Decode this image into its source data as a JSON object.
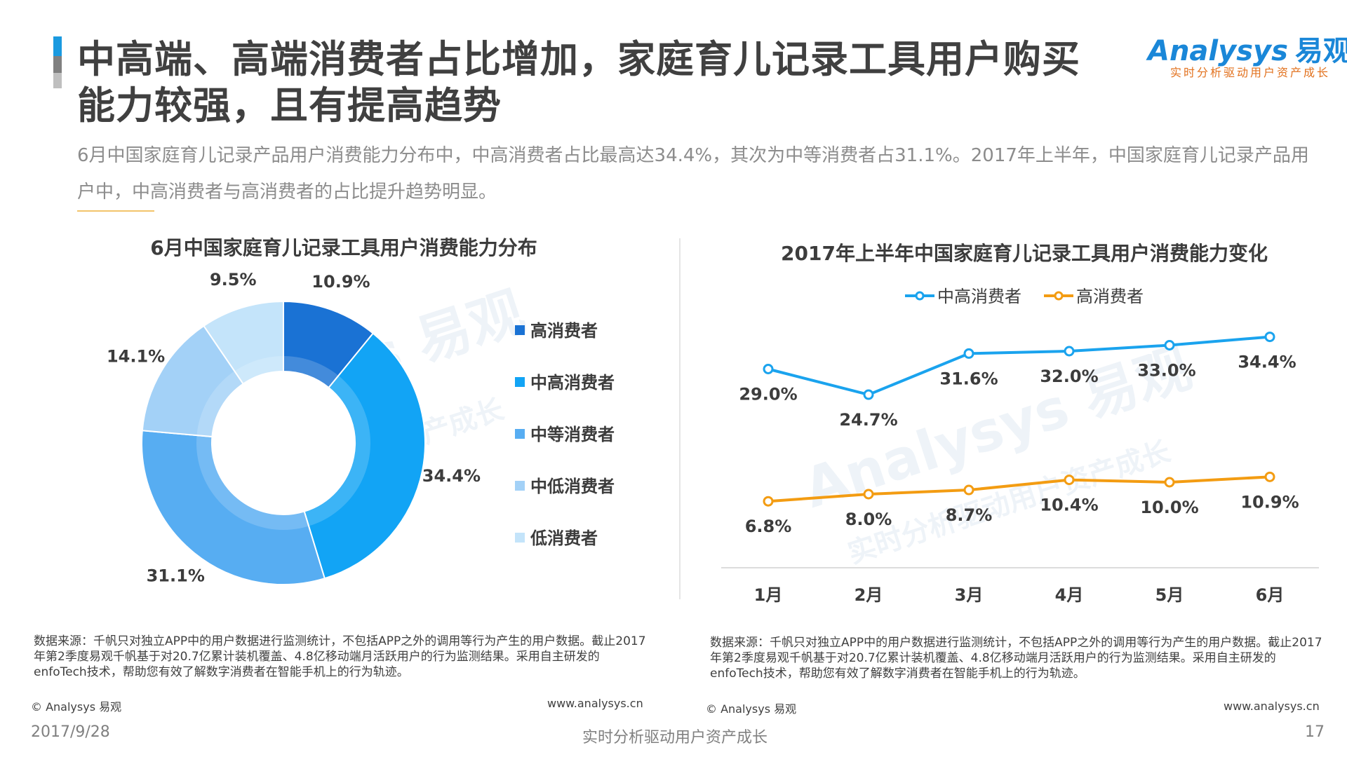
{
  "header": {
    "title": "中高端、高端消费者占比增加，家庭育儿记录工具用户购买能力较强，且有提高趋势",
    "logo_brand": "Analysys",
    "logo_cn": "易观",
    "logo_tagline": "实时分析驱动用户资产成长",
    "summary": "6月中国家庭育儿记录产品用户消费能力分布中，中高消费者占比最高达34.4%，其次为中等消费者占31.1%。2017年上半年，中国家庭育儿记录产品用户中，中高消费者与高消费者的占比提升趋势明显。"
  },
  "colors": {
    "accent_bar": [
      "#1a9ae0",
      "#808080",
      "#bfbfbf"
    ],
    "line_upper": "#1aa3ee",
    "line_lower": "#f39c12"
  },
  "chart_data": [
    {
      "type": "pie",
      "title": "6月中国家庭育儿记录工具用户消费能力分布",
      "categories": [
        "高消费者",
        "中高消费者",
        "中等消费者",
        "中低消费者",
        "低消费者"
      ],
      "values": [
        10.9,
        34.4,
        31.1,
        14.1,
        9.5
      ],
      "labels": [
        "10.9%",
        "34.4%",
        "31.1%",
        "14.1%",
        "9.5%"
      ],
      "colors": [
        "#1a72d4",
        "#12a4f5",
        "#57adf2",
        "#a3d1f7",
        "#c4e4fa"
      ],
      "donut": true,
      "legend_position": "right"
    },
    {
      "type": "line",
      "title": "2017年上半年中国家庭育儿记录工具用户消费能力变化",
      "categories": [
        "1月",
        "2月",
        "3月",
        "4月",
        "5月",
        "6月"
      ],
      "series": [
        {
          "name": "中高消费者",
          "values": [
            29.0,
            24.7,
            31.6,
            32.0,
            33.0,
            34.4
          ],
          "labels": [
            "29.0%",
            "24.7%",
            "31.6%",
            "32.0%",
            "33.0%",
            "34.4%"
          ],
          "color": "#1aa3ee"
        },
        {
          "name": "高消费者",
          "values": [
            6.8,
            8.0,
            8.7,
            10.4,
            10.0,
            10.9
          ],
          "labels": [
            "6.8%",
            "8.0%",
            "8.7%",
            "10.4%",
            "10.0%",
            "10.9%"
          ],
          "color": "#f39c12"
        }
      ],
      "legend_position": "top",
      "grid": false
    }
  ],
  "source_left": "数据来源：千帆只对独立APP中的用户数据进行监测统计，不包括APP之外的调用等行为产生的用户数据。截止2017年第2季度易观千帆基于对20.7亿累计装机覆盖、4.8亿移动端月活跃用户的行为监测结果。采用自主研发的enfoTech技术，帮助您有效了解数字消费者在智能手机上的行为轨迹。",
  "source_right": "数据来源：千帆只对独立APP中的用户数据进行监测统计，不包括APP之外的调用等行为产生的用户数据。截止2017年第2季度易观千帆基于对20.7亿累计装机覆盖、4.8亿移动端月活跃用户的行为监测结果。采用自主研发的enfoTech技术，帮助您有效了解数字消费者在智能手机上的行为轨迹。",
  "copyright_left": "© Analysys 易观",
  "url_left": "www.analysys.cn",
  "copyright_right": "© Analysys 易观",
  "url_right": "www.analysys.cn",
  "footer": {
    "date": "2017/9/28",
    "tagline": "实时分析驱动用户资产成长",
    "page": "17"
  },
  "watermark": {
    "brand": "Analysys 易观",
    "tagline": "实时分析驱动用户资产成长"
  }
}
